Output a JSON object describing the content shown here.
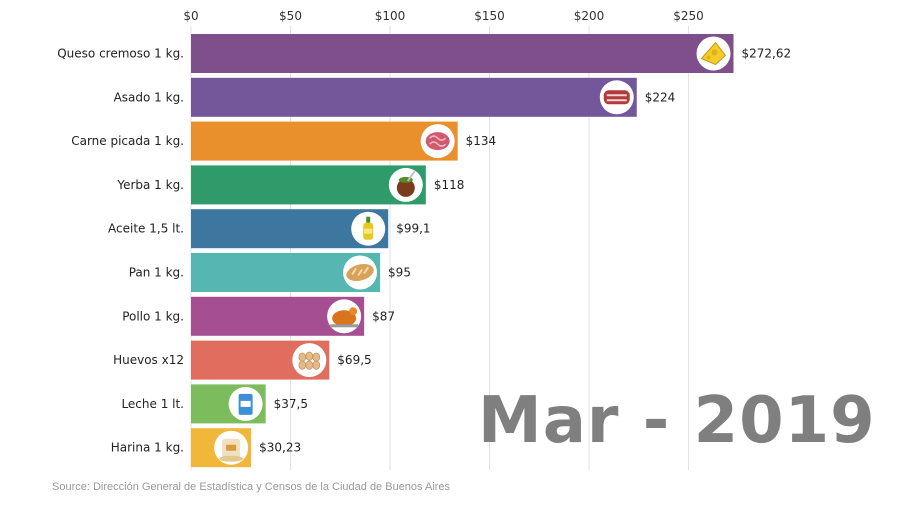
{
  "chart_data": {
    "type": "bar",
    "orientation": "horizontal",
    "categories": [
      "Queso cremoso 1 kg.",
      "Asado 1 kg.",
      "Carne picada 1 kg.",
      "Yerba 1 kg.",
      "Aceite 1,5 lt.",
      "Pan 1 kg.",
      "Pollo 1 kg.",
      "Huevos x12",
      "Leche 1 lt.",
      "Harina 1 kg."
    ],
    "values": [
      272.62,
      224,
      134,
      118,
      99.1,
      95,
      87,
      69.5,
      37.5,
      30.23
    ],
    "value_labels": [
      "$272,62",
      "$224",
      "$134",
      "$118",
      "$99,1",
      "$95",
      "$87",
      "$69,5",
      "$37,5",
      "$30,23"
    ],
    "colors": [
      "#7e4f8a",
      "#74579a",
      "#e98f2b",
      "#2f9a6a",
      "#3d77a0",
      "#56b6b2",
      "#a54e92",
      "#e06d5e",
      "#7dbc5c",
      "#f0b73b"
    ],
    "icons": [
      "cheese-icon",
      "asado-meat-icon",
      "ground-meat-icon",
      "mate-gourd-icon",
      "oil-bottle-icon",
      "bread-icon",
      "roast-chicken-icon",
      "eggs-icon",
      "milk-carton-icon",
      "flour-bag-icon"
    ],
    "xticks": [
      0,
      50,
      100,
      150,
      200,
      250
    ],
    "xtick_labels": [
      "$0",
      "$50",
      "$100",
      "$150",
      "$200",
      "$250"
    ],
    "xlim": [
      0,
      272.62
    ],
    "grid": true,
    "date_label": "Mar - 2019",
    "source": "Source: Dirección General de Estadística y Censos de la Ciudad de Buenos Aires"
  }
}
